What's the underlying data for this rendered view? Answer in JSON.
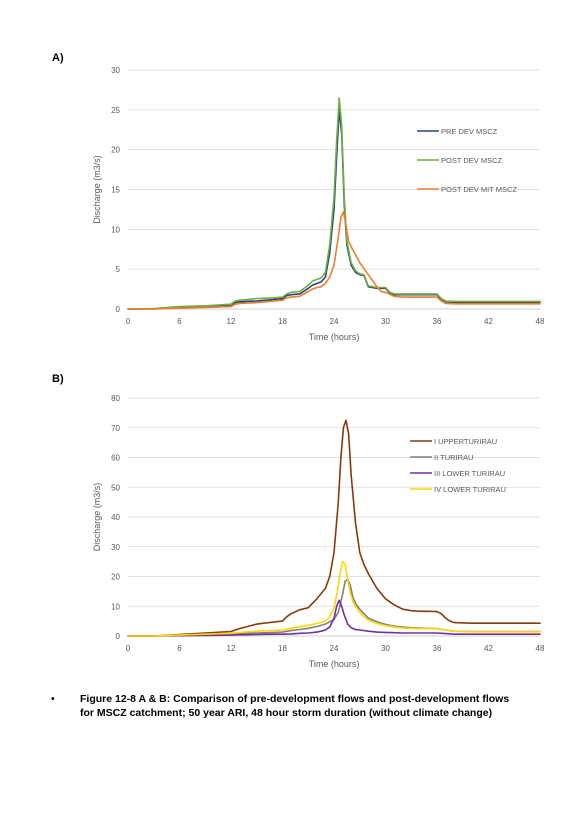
{
  "panels": {
    "a_label": "A)",
    "b_label": "B)"
  },
  "caption": {
    "bullet": "•",
    "text": "Figure 12-8 A & B: Comparison of pre-development flows and post-development flows for MSCZ catchment; 50 year ARI, 48 hour storm duration (without climate change)"
  },
  "chart_data": [
    {
      "type": "line",
      "title": "",
      "xlabel": "Time (hours)",
      "ylabel": "Discharge (m3/s)",
      "xlim": [
        0,
        48
      ],
      "ylim": [
        0,
        30
      ],
      "xticks": [
        0,
        6,
        12,
        18,
        24,
        30,
        36,
        42,
        48
      ],
      "yticks": [
        0,
        5,
        10,
        15,
        20,
        25,
        30
      ],
      "grid": "horizontal",
      "legend": "right",
      "series": [
        {
          "name": "PRE DEV MSCZ",
          "color": "#264478",
          "x": [
            0,
            3,
            6,
            9,
            12,
            12.5,
            13,
            15,
            17,
            18,
            18.5,
            19,
            20,
            21,
            21.5,
            22,
            22.5,
            23,
            23.5,
            24,
            24.3,
            24.6,
            24.9,
            25.2,
            25.5,
            26,
            26.5,
            27,
            27.5,
            28,
            29,
            30,
            30.5,
            31,
            32,
            33,
            34,
            35,
            36,
            36.5,
            37,
            38,
            40,
            42,
            44,
            46,
            48
          ],
          "y": [
            0,
            0,
            0.2,
            0.3,
            0.5,
            0.8,
            0.9,
            1.0,
            1.2,
            1.3,
            1.7,
            1.8,
            1.9,
            2.6,
            3.0,
            3.2,
            3.4,
            4.0,
            7.0,
            12.5,
            19.0,
            25.0,
            22.0,
            13.0,
            8.0,
            5.5,
            4.6,
            4.3,
            4.2,
            2.8,
            2.6,
            2.6,
            2.0,
            1.8,
            1.8,
            1.8,
            1.8,
            1.8,
            1.8,
            1.2,
            0.9,
            0.85,
            0.85,
            0.85,
            0.85,
            0.85,
            0.85
          ]
        },
        {
          "name": "POST DEV MSCZ",
          "color": "#70ad47",
          "x": [
            0,
            3,
            6,
            9,
            12,
            12.5,
            13,
            15,
            17,
            18,
            18.5,
            19,
            20,
            21,
            21.5,
            22,
            22.5,
            23,
            23.5,
            24,
            24.3,
            24.6,
            24.9,
            25.2,
            25.5,
            26,
            26.5,
            27,
            27.5,
            28,
            29,
            30,
            30.5,
            31,
            32,
            33,
            34,
            35,
            36,
            36.5,
            37,
            38,
            40,
            42,
            44,
            46,
            48
          ],
          "y": [
            0,
            0.05,
            0.3,
            0.4,
            0.6,
            1.0,
            1.1,
            1.3,
            1.4,
            1.5,
            1.9,
            2.1,
            2.2,
            3.0,
            3.5,
            3.7,
            3.9,
            4.6,
            8.0,
            14.0,
            21.0,
            26.5,
            23.0,
            14.0,
            8.5,
            5.8,
            4.8,
            4.4,
            4.3,
            2.9,
            2.7,
            2.7,
            2.1,
            1.9,
            1.9,
            1.9,
            1.9,
            1.9,
            1.9,
            1.3,
            1.0,
            0.95,
            0.95,
            0.95,
            0.95,
            0.95,
            0.95
          ]
        },
        {
          "name": "POST DEV MIT MSCZ",
          "color": "#ed7d31",
          "x": [
            0,
            3,
            6,
            9,
            12,
            12.5,
            13,
            15,
            17,
            18,
            18.5,
            19,
            20,
            21,
            21.5,
            22,
            22.5,
            23,
            23.5,
            24,
            24.5,
            24.8,
            25.1,
            25.4,
            25.7,
            26,
            26.5,
            27,
            28,
            29,
            29.5,
            30,
            31,
            32,
            33,
            34,
            35,
            36,
            36.5,
            37,
            38,
            40,
            42,
            44,
            46,
            48
          ],
          "y": [
            0,
            0,
            0.1,
            0.2,
            0.3,
            0.6,
            0.7,
            0.8,
            1.0,
            1.1,
            1.4,
            1.5,
            1.6,
            2.2,
            2.5,
            2.7,
            2.8,
            3.2,
            4.0,
            5.5,
            9.0,
            11.5,
            12.2,
            10.5,
            8.5,
            7.8,
            6.8,
            5.8,
            4.3,
            2.8,
            2.2,
            2.1,
            1.6,
            1.5,
            1.5,
            1.5,
            1.5,
            1.5,
            1.0,
            0.7,
            0.65,
            0.65,
            0.65,
            0.65,
            0.65,
            0.65
          ]
        }
      ]
    },
    {
      "type": "line",
      "title": "",
      "xlabel": "Time (hours)",
      "ylabel": "Discharge (m3/s)",
      "xlim": [
        0,
        48
      ],
      "ylim": [
        0,
        80
      ],
      "xticks": [
        0,
        6,
        12,
        18,
        24,
        30,
        36,
        42,
        48
      ],
      "yticks": [
        0,
        10,
        20,
        30,
        40,
        50,
        60,
        70,
        80
      ],
      "grid": "horizontal",
      "legend": "top-right",
      "series": [
        {
          "name": "I UPPERTURIRAU",
          "color": "#843c0c",
          "x": [
            0,
            3,
            6,
            9,
            12,
            12.5,
            13,
            15,
            17,
            18,
            18.5,
            19,
            20,
            21,
            22,
            23,
            23.5,
            24,
            24.5,
            24.8,
            25.1,
            25.4,
            25.7,
            26,
            26.5,
            27,
            27.5,
            28,
            29,
            30,
            31,
            32,
            33,
            34,
            35,
            36,
            36.5,
            37,
            37.5,
            38,
            40,
            42,
            44,
            46,
            48
          ],
          "y": [
            0,
            0,
            0.5,
            1.0,
            1.5,
            2.0,
            2.5,
            4.0,
            4.7,
            5.0,
            6.5,
            7.5,
            8.8,
            9.5,
            12.5,
            16.0,
            20.0,
            28.0,
            45.0,
            60.0,
            70.0,
            72.5,
            68.0,
            54.0,
            38.0,
            28.0,
            24.0,
            21.0,
            16.0,
            12.5,
            10.5,
            9.0,
            8.5,
            8.3,
            8.3,
            8.2,
            7.5,
            6.0,
            5.0,
            4.5,
            4.3,
            4.3,
            4.3,
            4.3,
            4.3
          ]
        },
        {
          "name": "II TURIRAU",
          "color": "#808080",
          "x": [
            0,
            3,
            6,
            9,
            12,
            13,
            15,
            17,
            18,
            19,
            20,
            21,
            22,
            23,
            24,
            24.5,
            25,
            25.3,
            25.6,
            25.9,
            26.2,
            26.6,
            27,
            27.5,
            28,
            29,
            30,
            31,
            32,
            33,
            34,
            35,
            36,
            37,
            38,
            40,
            42,
            44,
            46,
            48
          ],
          "y": [
            0,
            0,
            0.2,
            0.3,
            0.5,
            0.8,
            1.0,
            1.2,
            1.3,
            1.8,
            2.2,
            2.6,
            3.2,
            4.0,
            5.5,
            8.0,
            14.0,
            18.5,
            19.0,
            17.0,
            13.0,
            10.5,
            9.0,
            7.5,
            6.0,
            4.8,
            3.9,
            3.3,
            3.0,
            2.8,
            2.7,
            2.6,
            2.5,
            2.0,
            1.6,
            1.5,
            1.5,
            1.5,
            1.5,
            1.5
          ]
        },
        {
          "name": "III LOWER TURIRAU",
          "color": "#7030a0",
          "x": [
            0,
            3,
            6,
            9,
            12,
            13,
            15,
            17,
            18,
            19,
            20,
            21,
            22,
            22.5,
            23,
            23.5,
            24,
            24.3,
            24.6,
            24.9,
            25.2,
            25.6,
            26,
            26.5,
            27,
            28,
            29,
            30,
            31,
            32,
            33,
            34,
            35,
            36,
            37,
            38,
            40,
            42,
            44,
            46,
            48
          ],
          "y": [
            0,
            0,
            0.1,
            0.2,
            0.3,
            0.4,
            0.5,
            0.6,
            0.6,
            0.7,
            0.9,
            1.0,
            1.3,
            1.6,
            2.0,
            3.0,
            6.0,
            10.0,
            12.0,
            10.0,
            7.0,
            4.0,
            2.8,
            2.2,
            2.0,
            1.6,
            1.3,
            1.2,
            1.1,
            1.0,
            1.0,
            1.0,
            1.0,
            1.0,
            0.8,
            0.6,
            0.6,
            0.6,
            0.6,
            0.6,
            0.6
          ]
        },
        {
          "name": "IV LOWER TURIRAU",
          "color": "#ffd700",
          "x": [
            0,
            3,
            6,
            9,
            12,
            13,
            15,
            17,
            18,
            19,
            20,
            21,
            22,
            23,
            23.5,
            24,
            24.4,
            24.7,
            25,
            25.3,
            25.6,
            25.9,
            26.2,
            26.6,
            27,
            27.5,
            28,
            29,
            30,
            31,
            32,
            33,
            34,
            35,
            36,
            37,
            38,
            40,
            42,
            44,
            46,
            48
          ],
          "y": [
            0,
            0,
            0.3,
            0.6,
            0.9,
            1.2,
            1.6,
            1.9,
            2.0,
            2.6,
            3.1,
            3.6,
            4.2,
            5.0,
            6.5,
            9.5,
            15.0,
            21.0,
            25.0,
            24.0,
            19.0,
            14.5,
            11.5,
            9.5,
            8.0,
            6.5,
            5.3,
            4.2,
            3.5,
            3.0,
            2.7,
            2.6,
            2.5,
            2.5,
            2.5,
            2.0,
            1.6,
            1.4,
            1.4,
            1.4,
            1.4,
            1.4
          ]
        }
      ]
    }
  ]
}
